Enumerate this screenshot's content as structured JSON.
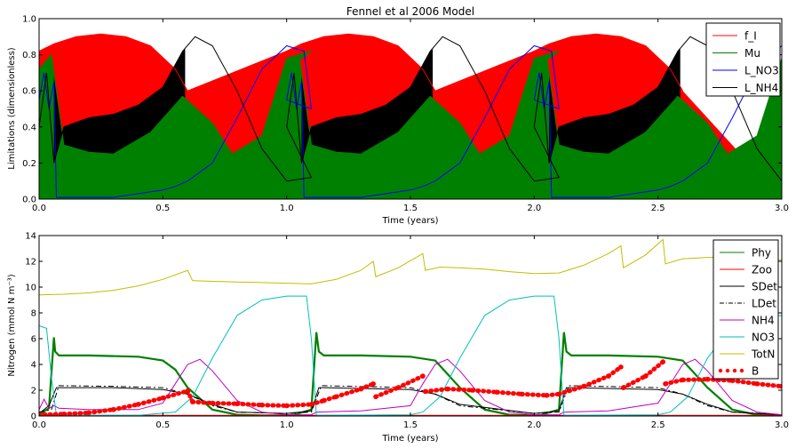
{
  "figure_title": "Fennel et al 2006 Model",
  "colors": {
    "f_I": "#ff0000",
    "Mu": "#008000",
    "L_NO3": "#0000ff",
    "L_NH4": "#000000",
    "Phy": "#008000",
    "Zoo": "#ff0000",
    "SDet": "#000000",
    "LDet": "#000000",
    "NH4": "#bf00bf",
    "NO3": "#00bfbf",
    "TotN": "#bfbf00",
    "B": "#ff0000"
  },
  "chart_data": [
    {
      "type": "area",
      "title": "Fennel et al 2006 Model",
      "xlabel": "Time (years)",
      "ylabel": "Limitations (dimensionless)",
      "xlim": [
        0,
        3
      ],
      "ylim": [
        0,
        1
      ],
      "xticks": [
        "0.0",
        "0.5",
        "1.0",
        "1.5",
        "2.0",
        "2.5",
        "3.0"
      ],
      "yticks": [
        "0.0",
        "0.2",
        "0.4",
        "0.6",
        "0.8",
        "1.0"
      ],
      "legend_position": "top-right",
      "grid": false,
      "series": [
        {
          "name": "f_I",
          "style": "line",
          "x": [
            0,
            0.06,
            0.15,
            0.25,
            0.35,
            0.45,
            0.55,
            0.6
          ],
          "y": [
            0.82,
            0.86,
            0.9,
            0.915,
            0.9,
            0.85,
            0.72,
            0.6
          ],
          "period": 1
        },
        {
          "name": "Mu",
          "style": "line",
          "x": [
            0,
            0.05,
            0.1,
            0.2,
            0.3,
            0.45,
            0.58,
            0.7,
            0.78,
            0.9,
            1.0,
            1.1
          ],
          "y": [
            0.72,
            0.8,
            0.3,
            0.26,
            0.25,
            0.37,
            0.57,
            0.42,
            0.25,
            0.35,
            0.78,
            0.82
          ],
          "period": 1
        },
        {
          "name": "L_NO3",
          "style": "line",
          "x": [
            0,
            0.02,
            0.04,
            0.06,
            0.07,
            0.3,
            0.5,
            0.55,
            0.6,
            0.7,
            0.8,
            0.9,
            1.0,
            1.07,
            1.1
          ],
          "y": [
            0.55,
            0.7,
            0.5,
            0.65,
            0.01,
            0.01,
            0.05,
            0.07,
            0.1,
            0.2,
            0.45,
            0.72,
            0.85,
            0.82,
            0.5
          ],
          "period": 1
        },
        {
          "name": "L_NH4",
          "style": "line",
          "x": [
            0,
            0.03,
            0.06,
            0.1,
            0.2,
            0.3,
            0.4,
            0.5,
            0.58,
            0.63,
            0.7,
            0.8,
            0.9,
            1.0,
            1.1
          ],
          "y": [
            0.4,
            0.7,
            0.2,
            0.4,
            0.45,
            0.47,
            0.52,
            0.62,
            0.82,
            0.9,
            0.85,
            0.6,
            0.28,
            0.1,
            0.12
          ],
          "period": 1
        }
      ]
    },
    {
      "type": "line",
      "title": "",
      "xlabel": "Time (years)",
      "ylabel": "Nitrogen (mmol N m⁻³)",
      "xlim": [
        0,
        3
      ],
      "ylim": [
        0,
        14
      ],
      "xticks": [
        "0.0",
        "0.5",
        "1.0",
        "1.5",
        "2.0",
        "2.5",
        "3.0"
      ],
      "yticks": [
        "0",
        "2",
        "4",
        "6",
        "8",
        "10",
        "12",
        "14"
      ],
      "legend_position": "top-right",
      "grid": false,
      "series": [
        {
          "name": "Phy",
          "x": [
            0,
            0.04,
            0.06,
            0.065,
            0.08,
            0.2,
            0.4,
            0.5,
            0.55,
            0.6,
            0.7,
            0.8,
            0.9,
            1.0,
            1.03,
            1.1,
            1.12,
            1.13,
            1.15,
            1.3,
            1.5,
            1.6,
            1.7,
            1.8,
            1.9,
            2.0,
            2.03,
            2.1,
            2.12,
            2.13,
            2.15,
            2.3,
            2.5,
            2.6,
            2.7,
            2.8,
            2.9,
            3.0
          ],
          "y": [
            0.1,
            0.6,
            6.1,
            5.0,
            4.7,
            4.7,
            4.6,
            4.3,
            3.6,
            2.2,
            0.5,
            0.1,
            0.05,
            0.05,
            0.1,
            0.5,
            6.5,
            5.0,
            4.7,
            4.7,
            4.6,
            4.3,
            2.2,
            0.5,
            0.1,
            0.05,
            0.1,
            0.5,
            6.5,
            5.0,
            4.7,
            4.7,
            4.6,
            4.3,
            2.2,
            0.5,
            0.1,
            0.05
          ]
        },
        {
          "name": "Zoo",
          "x": [
            0,
            3
          ],
          "y": [
            0.05,
            0.05
          ]
        },
        {
          "name": "SDet",
          "x": [
            0,
            0.04,
            0.07,
            0.1,
            0.3,
            0.5,
            0.6,
            0.7,
            0.8,
            1.0,
            1.1,
            1.13,
            1.15,
            1.5,
            1.6,
            1.7,
            2.0,
            2.1,
            2.13,
            2.15,
            2.5,
            2.6,
            2.7,
            2.8,
            3.0
          ],
          "y": [
            0.2,
            0.8,
            2.2,
            2.2,
            2.2,
            2.05,
            1.7,
            0.9,
            0.3,
            0.2,
            0.4,
            2.2,
            2.2,
            2.05,
            1.7,
            0.9,
            0.2,
            0.4,
            2.2,
            2.2,
            2.05,
            1.7,
            0.9,
            0.3,
            0.1
          ]
        },
        {
          "name": "LDet",
          "dash": "6,3,2,3",
          "x": [
            0,
            0.05,
            0.08,
            0.3,
            0.5,
            0.6,
            0.7,
            0.8,
            1.0,
            1.1,
            1.14,
            1.5,
            1.6,
            1.7,
            2.0,
            2.1,
            2.14,
            2.5,
            2.6,
            2.7,
            2.8,
            3.0
          ],
          "y": [
            0.3,
            0.5,
            2.35,
            2.3,
            2.2,
            1.7,
            0.8,
            0.3,
            0.2,
            0.3,
            2.35,
            2.2,
            1.7,
            0.8,
            0.2,
            0.3,
            2.35,
            2.2,
            1.7,
            0.8,
            0.3,
            0.1
          ]
        },
        {
          "name": "NH4",
          "x": [
            0,
            0.02,
            0.04,
            0.06,
            0.08,
            0.2,
            0.4,
            0.5,
            0.55,
            0.6,
            0.65,
            0.7,
            0.8,
            0.9,
            1.0,
            1.1,
            1.12,
            1.3,
            1.5,
            1.55,
            1.6,
            1.65,
            1.7,
            1.8,
            1.9,
            2.0,
            2.1,
            2.12,
            2.3,
            2.5,
            2.55,
            2.6,
            2.65,
            2.7,
            2.8,
            2.9,
            3.0
          ],
          "y": [
            0.5,
            1.3,
            0.6,
            0.8,
            0.6,
            0.5,
            0.5,
            1.0,
            2.5,
            4.0,
            4.4,
            3.5,
            1.2,
            0.3,
            0.1,
            0.1,
            0.3,
            0.4,
            0.8,
            2.5,
            4.0,
            4.4,
            3.5,
            1.2,
            0.3,
            0.1,
            0.1,
            0.3,
            0.4,
            1.0,
            2.5,
            4.0,
            4.4,
            3.5,
            1.2,
            0.3,
            0.1
          ]
        },
        {
          "name": "NO3",
          "x": [
            0,
            0.03,
            0.05,
            0.07,
            0.4,
            0.55,
            0.62,
            0.7,
            0.8,
            0.9,
            1.0,
            1.08,
            1.1,
            1.12,
            1.5,
            1.55,
            1.62,
            1.7,
            1.8,
            1.9,
            2.0,
            2.08,
            2.1,
            2.12,
            2.5,
            2.55,
            2.62,
            2.7,
            2.8,
            2.9,
            3.0
          ],
          "y": [
            7.0,
            6.8,
            3.0,
            0.05,
            0.05,
            0.3,
            1.5,
            4.5,
            7.8,
            9.0,
            9.3,
            9.3,
            6.0,
            0.05,
            0.1,
            0.3,
            1.5,
            4.5,
            7.8,
            9.0,
            9.3,
            9.3,
            6.0,
            0.05,
            0.1,
            0.3,
            1.5,
            4.5,
            7.0,
            7.6,
            7.8
          ]
        },
        {
          "name": "TotN",
          "x": [
            0,
            0.1,
            0.2,
            0.3,
            0.4,
            0.5,
            0.6,
            0.62,
            0.7,
            0.8,
            0.9,
            1.0,
            1.1,
            1.2,
            1.3,
            1.35,
            1.36,
            1.45,
            1.55,
            1.56,
            1.62,
            1.7,
            1.8,
            1.9,
            2.0,
            2.1,
            2.2,
            2.3,
            2.35,
            2.36,
            2.45,
            2.52,
            2.53,
            2.6,
            2.7,
            2.8,
            2.9,
            3.0
          ],
          "y": [
            9.4,
            9.45,
            9.55,
            9.75,
            10.1,
            10.6,
            11.3,
            10.5,
            10.45,
            10.4,
            10.35,
            10.3,
            10.25,
            10.6,
            11.3,
            12.0,
            10.8,
            11.5,
            12.6,
            11.3,
            11.55,
            11.5,
            11.4,
            11.2,
            11.05,
            11.1,
            11.7,
            12.6,
            13.2,
            11.5,
            12.5,
            13.7,
            11.8,
            12.2,
            12.3,
            12.3,
            12.2,
            12.1
          ]
        },
        {
          "name": "B",
          "style": "dots",
          "x": [
            0.0,
            0.1,
            0.2,
            0.3,
            0.4,
            0.5,
            0.6,
            0.62,
            0.7,
            0.8,
            0.9,
            1.0,
            1.1,
            1.15,
            1.2,
            1.3,
            1.35,
            1.36,
            1.45,
            1.55,
            1.56,
            1.65,
            1.75,
            1.85,
            1.95,
            2.05,
            2.1,
            2.2,
            2.3,
            2.35,
            2.36,
            2.45,
            2.52,
            2.53,
            2.6,
            2.7,
            2.8,
            2.9,
            3.0
          ],
          "y": [
            0.1,
            0.15,
            0.25,
            0.5,
            0.9,
            1.4,
            1.95,
            1.1,
            1.0,
            0.95,
            0.85,
            0.8,
            0.9,
            1.2,
            1.5,
            2.1,
            2.5,
            1.5,
            2.2,
            3.1,
            1.9,
            2.1,
            2.0,
            1.85,
            1.7,
            1.6,
            1.7,
            2.3,
            3.1,
            3.8,
            2.2,
            3.1,
            4.2,
            2.5,
            2.8,
            2.85,
            2.75,
            2.5,
            2.3
          ]
        }
      ]
    }
  ]
}
